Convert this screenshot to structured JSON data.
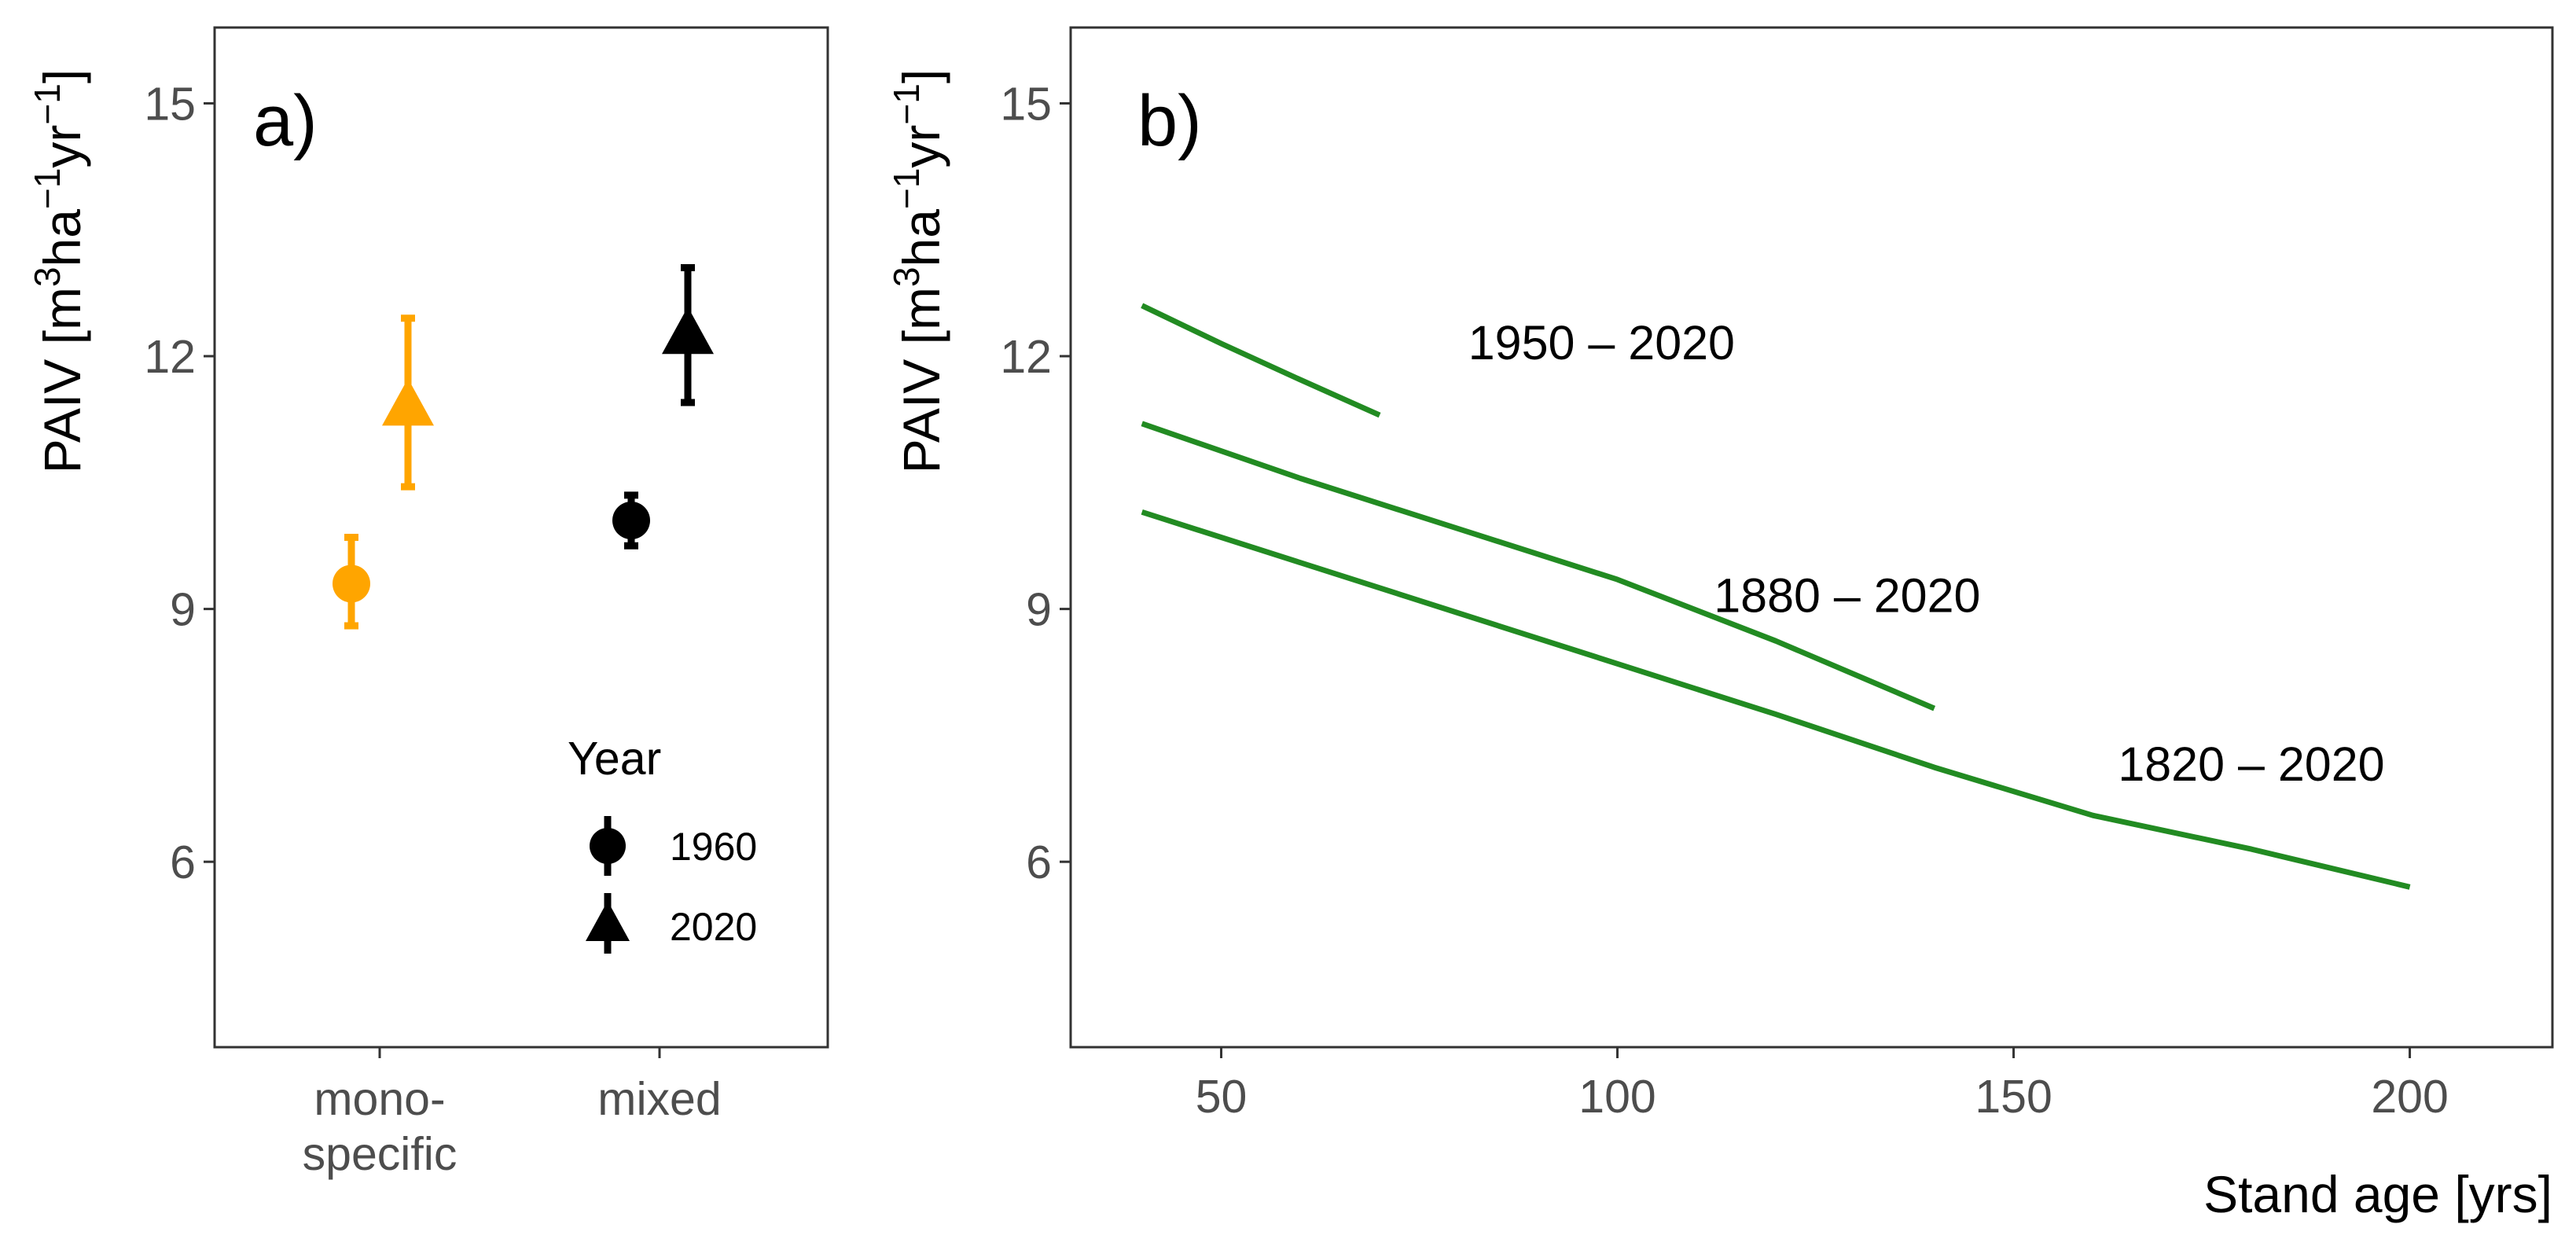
{
  "chart_data": [
    {
      "panel": "a)",
      "type": "scatter",
      "ylabel": "PAIV [m3ha−1yr−1]",
      "ylabel_parts": {
        "base": "PAIV [m",
        "sup1": "3",
        "mid1": "ha",
        "sup2": "−1",
        "mid2": "yr",
        "sup3": "−1",
        "end": "]"
      },
      "ylim": [
        3.8,
        15.9
      ],
      "yticks": [
        "6",
        "9",
        "12",
        "15"
      ],
      "ytick_values": [
        6,
        9,
        12,
        15
      ],
      "categories": [
        {
          "lines": [
            "mono-",
            "specific"
          ]
        },
        {
          "lines": [
            "mixed"
          ]
        }
      ],
      "legend": {
        "title": "Year",
        "entries": [
          {
            "label": "1960",
            "shape": "circle"
          },
          {
            "label": "2020",
            "shape": "triangle"
          }
        ]
      },
      "series": [
        {
          "name": "1960",
          "shape": "circle",
          "points": [
            {
              "category": 0,
              "y": 9.3,
              "lo": 8.8,
              "hi": 9.85,
              "color": "#FFA500"
            },
            {
              "category": 1,
              "y": 10.05,
              "lo": 9.75,
              "hi": 10.35,
              "color": "#000000"
            }
          ]
        },
        {
          "name": "2020",
          "shape": "triangle",
          "points": [
            {
              "category": 0,
              "y": 11.4,
              "lo": 10.45,
              "hi": 12.45,
              "color": "#FFA500"
            },
            {
              "category": 1,
              "y": 12.25,
              "lo": 11.45,
              "hi": 13.05,
              "color": "#000000"
            }
          ]
        }
      ]
    },
    {
      "panel": "b)",
      "type": "line",
      "xlabel": "Stand age [yrs]",
      "ylabel": "PAIV [m3ha−1yr−1]",
      "ylabel_parts": {
        "base": "PAIV [m",
        "sup1": "3",
        "mid1": "ha",
        "sup2": "−1",
        "mid2": "yr",
        "sup3": "−1",
        "end": "]"
      },
      "xlim": [
        31,
        218
      ],
      "ylim": [
        3.8,
        15.9
      ],
      "xticks": [
        "50",
        "100",
        "150",
        "200"
      ],
      "xtick_values": [
        50,
        100,
        150,
        200
      ],
      "yticks": [
        "6",
        "9",
        "12",
        "15"
      ],
      "ytick_values": [
        6,
        9,
        12,
        15
      ],
      "line_color": "#228B22",
      "series": [
        {
          "name": "1950 – 2020",
          "x": [
            40,
            50,
            60,
            70
          ],
          "y": [
            12.6,
            12.15,
            11.72,
            11.3
          ]
        },
        {
          "name": "1880 – 2020",
          "x": [
            40,
            60,
            80,
            100,
            120,
            140
          ],
          "y": [
            11.2,
            10.55,
            9.95,
            9.35,
            8.62,
            7.82
          ]
        },
        {
          "name": "1820 – 2020",
          "x": [
            40,
            60,
            80,
            100,
            120,
            140,
            160,
            180,
            200
          ],
          "y": [
            10.15,
            9.55,
            8.95,
            8.35,
            7.75,
            7.12,
            6.55,
            6.15,
            5.7
          ]
        }
      ],
      "annotations": [
        {
          "text": "1950 – 2020",
          "x": 98,
          "y": 12.15
        },
        {
          "text": "1880 – 2020",
          "x": 129,
          "y": 9.15
        },
        {
          "text": "1820 – 2020",
          "x": 180,
          "y": 7.15
        }
      ]
    }
  ]
}
